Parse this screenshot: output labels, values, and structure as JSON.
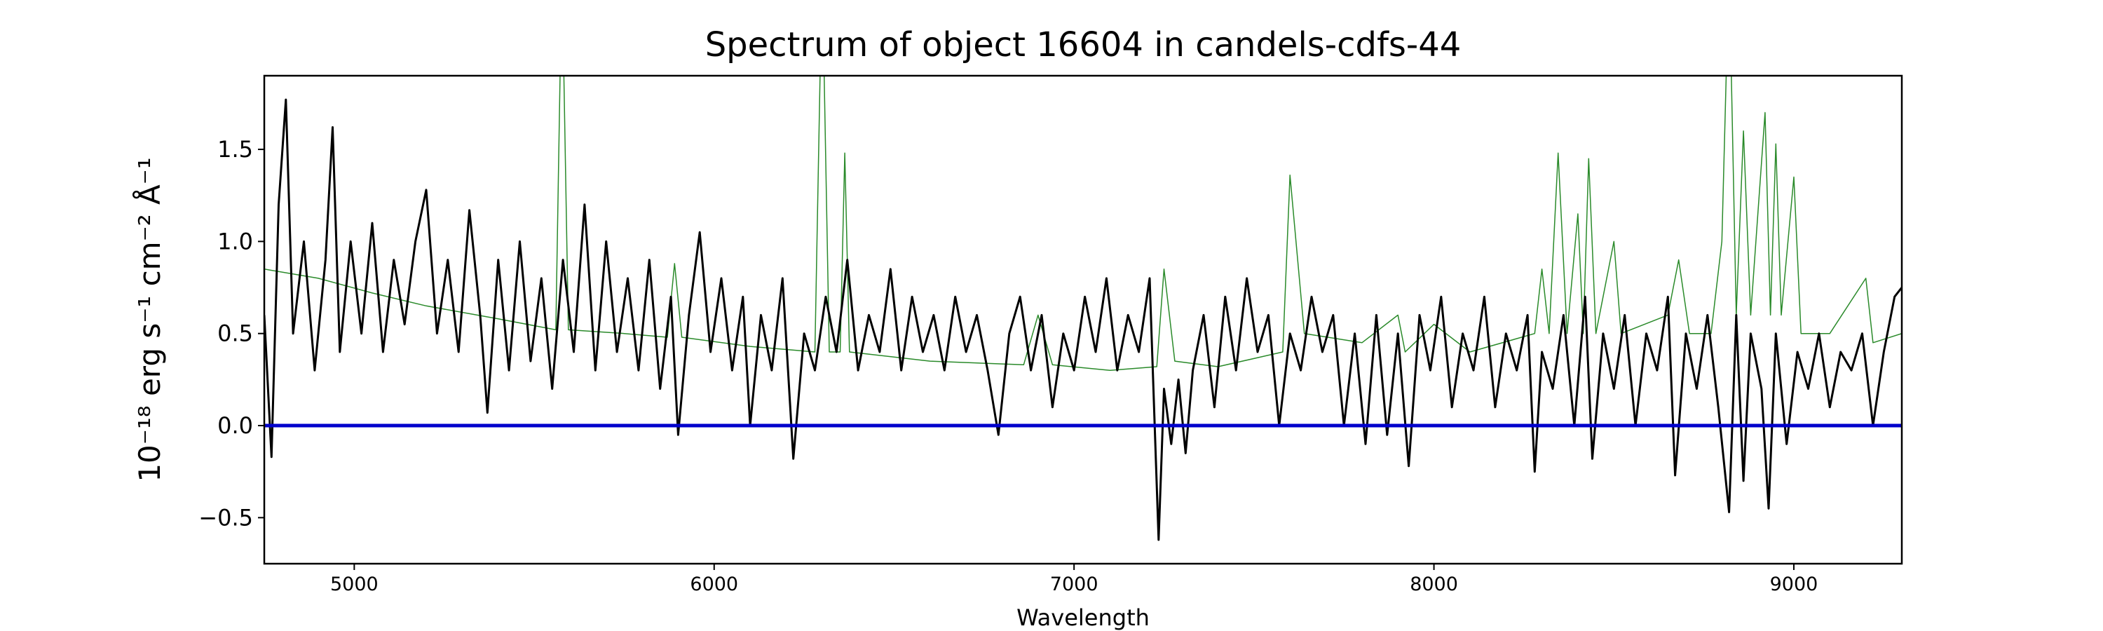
{
  "chart_data": {
    "type": "line",
    "title": "Spectrum of object 16604 in candels-cdfs-44",
    "xlabel": "Wavelength",
    "ylabel": "10⁻¹⁸ erg s⁻¹ cm⁻² Å⁻¹",
    "xlim": [
      4750,
      9300
    ],
    "ylim": [
      -0.75,
      1.9
    ],
    "xticks": [
      5000,
      6000,
      7000,
      8000,
      9000
    ],
    "yticks": [
      {
        "value": -0.5,
        "label": "−0.5"
      },
      {
        "value": 0,
        "label": "0.0"
      },
      {
        "value": 0.5,
        "label": "0.5"
      },
      {
        "value": 1,
        "label": "1.0"
      },
      {
        "value": 1.5,
        "label": "1.5"
      }
    ],
    "grid": false,
    "series": [
      {
        "color": "#2a8a2a",
        "x": [
          4750,
          4900,
          5050,
          5200,
          5400,
          5560,
          5577,
          5595,
          5750,
          5870,
          5890,
          5910,
          6100,
          6280,
          6300,
          6320,
          6350,
          6363,
          6376,
          6600,
          6860,
          6900,
          6940,
          7100,
          7230,
          7250,
          7280,
          7400,
          7580,
          7600,
          7640,
          7800,
          7900,
          7920,
          8000,
          8100,
          8280,
          8300,
          8320,
          8345,
          8370,
          8400,
          8415,
          8430,
          8450,
          8500,
          8520,
          8650,
          8680,
          8710,
          8770,
          8800,
          8820,
          8840,
          8860,
          8880,
          8920,
          8935,
          8950,
          8965,
          9000,
          9020,
          9100,
          9200,
          9220,
          9300
        ],
        "values": [
          0.85,
          0.8,
          0.72,
          0.65,
          0.58,
          0.52,
          2.5,
          0.52,
          0.5,
          0.48,
          0.88,
          0.48,
          0.43,
          0.4,
          2.5,
          0.4,
          0.4,
          1.48,
          0.4,
          0.35,
          0.33,
          0.6,
          0.33,
          0.3,
          0.32,
          0.85,
          0.35,
          0.32,
          0.4,
          1.36,
          0.5,
          0.45,
          0.6,
          0.4,
          0.55,
          0.4,
          0.5,
          0.85,
          0.5,
          1.48,
          0.5,
          1.15,
          0.5,
          1.45,
          0.5,
          1.0,
          0.5,
          0.6,
          0.9,
          0.5,
          0.5,
          1.0,
          2.5,
          0.6,
          1.6,
          0.6,
          1.7,
          0.6,
          1.53,
          0.6,
          1.35,
          0.5,
          0.5,
          0.8,
          0.45,
          0.5
        ]
      },
      {
        "color": "#000000",
        "x": [
          4750,
          4770,
          4790,
          4810,
          4830,
          4860,
          4890,
          4920,
          4940,
          4960,
          4990,
          5020,
          5050,
          5080,
          5110,
          5140,
          5170,
          5200,
          5230,
          5260,
          5290,
          5320,
          5350,
          5370,
          5400,
          5430,
          5460,
          5490,
          5520,
          5550,
          5580,
          5610,
          5640,
          5670,
          5700,
          5730,
          5760,
          5790,
          5820,
          5850,
          5880,
          5900,
          5930,
          5960,
          5990,
          6020,
          6050,
          6080,
          6100,
          6130,
          6160,
          6190,
          6220,
          6250,
          6280,
          6310,
          6340,
          6370,
          6400,
          6430,
          6460,
          6490,
          6520,
          6550,
          6580,
          6610,
          6640,
          6670,
          6700,
          6730,
          6760,
          6790,
          6820,
          6850,
          6880,
          6910,
          6940,
          6970,
          7000,
          7030,
          7060,
          7090,
          7120,
          7150,
          7180,
          7210,
          7235,
          7250,
          7270,
          7290,
          7310,
          7330,
          7360,
          7390,
          7420,
          7450,
          7480,
          7510,
          7540,
          7570,
          7600,
          7630,
          7660,
          7690,
          7720,
          7750,
          7780,
          7810,
          7840,
          7870,
          7900,
          7930,
          7960,
          7990,
          8020,
          8050,
          8080,
          8110,
          8140,
          8170,
          8200,
          8230,
          8260,
          8280,
          8300,
          8330,
          8360,
          8390,
          8420,
          8440,
          8470,
          8500,
          8530,
          8560,
          8590,
          8620,
          8650,
          8670,
          8700,
          8730,
          8760,
          8790,
          8820,
          8840,
          8860,
          8880,
          8910,
          8930,
          8950,
          8980,
          9010,
          9040,
          9070,
          9100,
          9130,
          9160,
          9190,
          9220,
          9250,
          9280,
          9300
        ],
        "values": [
          0.6,
          -0.17,
          1.2,
          1.77,
          0.5,
          1.0,
          0.3,
          0.9,
          1.62,
          0.4,
          1.0,
          0.5,
          1.1,
          0.4,
          0.9,
          0.55,
          1.0,
          1.28,
          0.5,
          0.9,
          0.4,
          1.17,
          0.6,
          0.07,
          0.9,
          0.3,
          1.0,
          0.35,
          0.8,
          0.2,
          0.9,
          0.4,
          1.2,
          0.3,
          1.0,
          0.4,
          0.8,
          0.3,
          0.9,
          0.2,
          0.7,
          -0.05,
          0.6,
          1.05,
          0.4,
          0.8,
          0.3,
          0.7,
          0.0,
          0.6,
          0.3,
          0.8,
          -0.18,
          0.5,
          0.3,
          0.7,
          0.4,
          0.9,
          0.3,
          0.6,
          0.4,
          0.85,
          0.3,
          0.7,
          0.4,
          0.6,
          0.3,
          0.7,
          0.4,
          0.6,
          0.3,
          -0.05,
          0.5,
          0.7,
          0.3,
          0.6,
          0.1,
          0.5,
          0.3,
          0.7,
          0.4,
          0.8,
          0.3,
          0.6,
          0.4,
          0.8,
          -0.62,
          0.2,
          -0.1,
          0.25,
          -0.15,
          0.3,
          0.6,
          0.1,
          0.7,
          0.3,
          0.8,
          0.4,
          0.6,
          0.0,
          0.5,
          0.3,
          0.7,
          0.4,
          0.6,
          0.0,
          0.5,
          -0.1,
          0.6,
          -0.05,
          0.5,
          -0.22,
          0.6,
          0.3,
          0.7,
          0.1,
          0.5,
          0.3,
          0.7,
          0.1,
          0.5,
          0.3,
          0.6,
          -0.25,
          0.4,
          0.2,
          0.6,
          0.0,
          0.7,
          -0.18,
          0.5,
          0.2,
          0.6,
          0.0,
          0.5,
          0.3,
          0.7,
          -0.27,
          0.5,
          0.2,
          0.6,
          0.1,
          -0.47,
          0.6,
          -0.3,
          0.5,
          0.2,
          -0.45,
          0.5,
          -0.1,
          0.4,
          0.2,
          0.5,
          0.1,
          0.4,
          0.3,
          0.5,
          0.0,
          0.4,
          0.7,
          0.75
        ]
      },
      {
        "color": "#0000cc",
        "x": [
          4750,
          9300
        ],
        "values": [
          0,
          0
        ]
      }
    ]
  }
}
